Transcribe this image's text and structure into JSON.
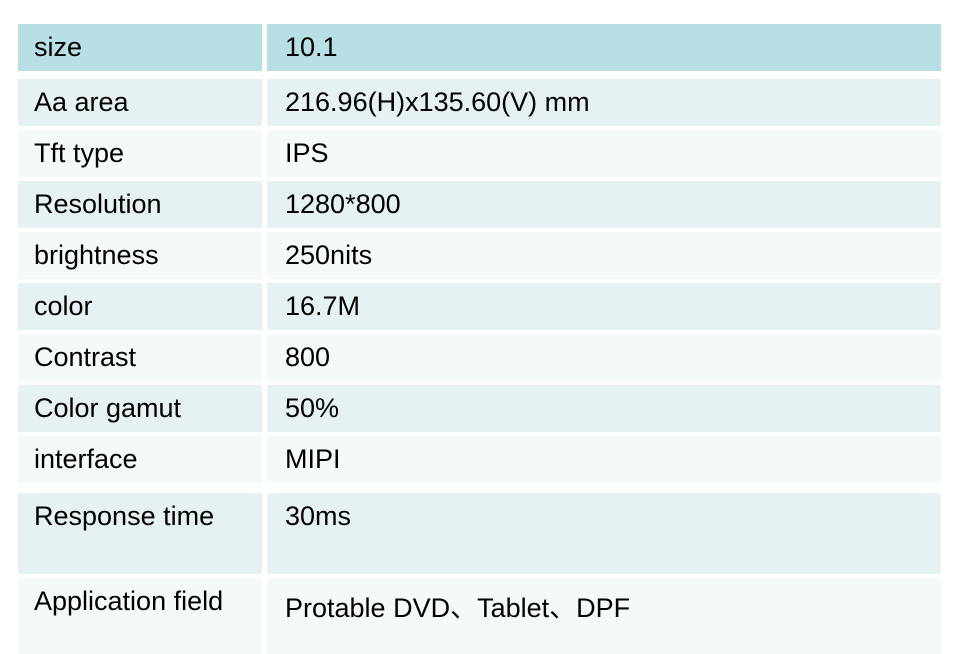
{
  "table": {
    "rows": [
      {
        "label": "size",
        "value": "10.1"
      },
      {
        "label": "Aa area",
        "value": "216.96(H)x135.60(V) mm"
      },
      {
        "label": "Tft type",
        "value": "IPS"
      },
      {
        "label": "Resolution",
        "value": "1280*800"
      },
      {
        "label": "brightness",
        "value": "250nits"
      },
      {
        "label": "color",
        "value": "16.7M"
      },
      {
        "label": "Contrast",
        "value": "800"
      },
      {
        "label": "Color gamut",
        "value": "50%"
      },
      {
        "label": "interface",
        "value": "MIPI"
      },
      {
        "label": "Response time",
        "value": "30ms"
      },
      {
        "label": "Application field",
        "value": "Protable DVD、Tablet、DPF"
      }
    ],
    "colors": {
      "header_row_bg": "#b7dfe4",
      "light_teal_row_bg": "#e6f1f3",
      "near_white_row_bg": "#f4f9fa",
      "text": "#000000",
      "page_bg": "#ffffff"
    }
  }
}
